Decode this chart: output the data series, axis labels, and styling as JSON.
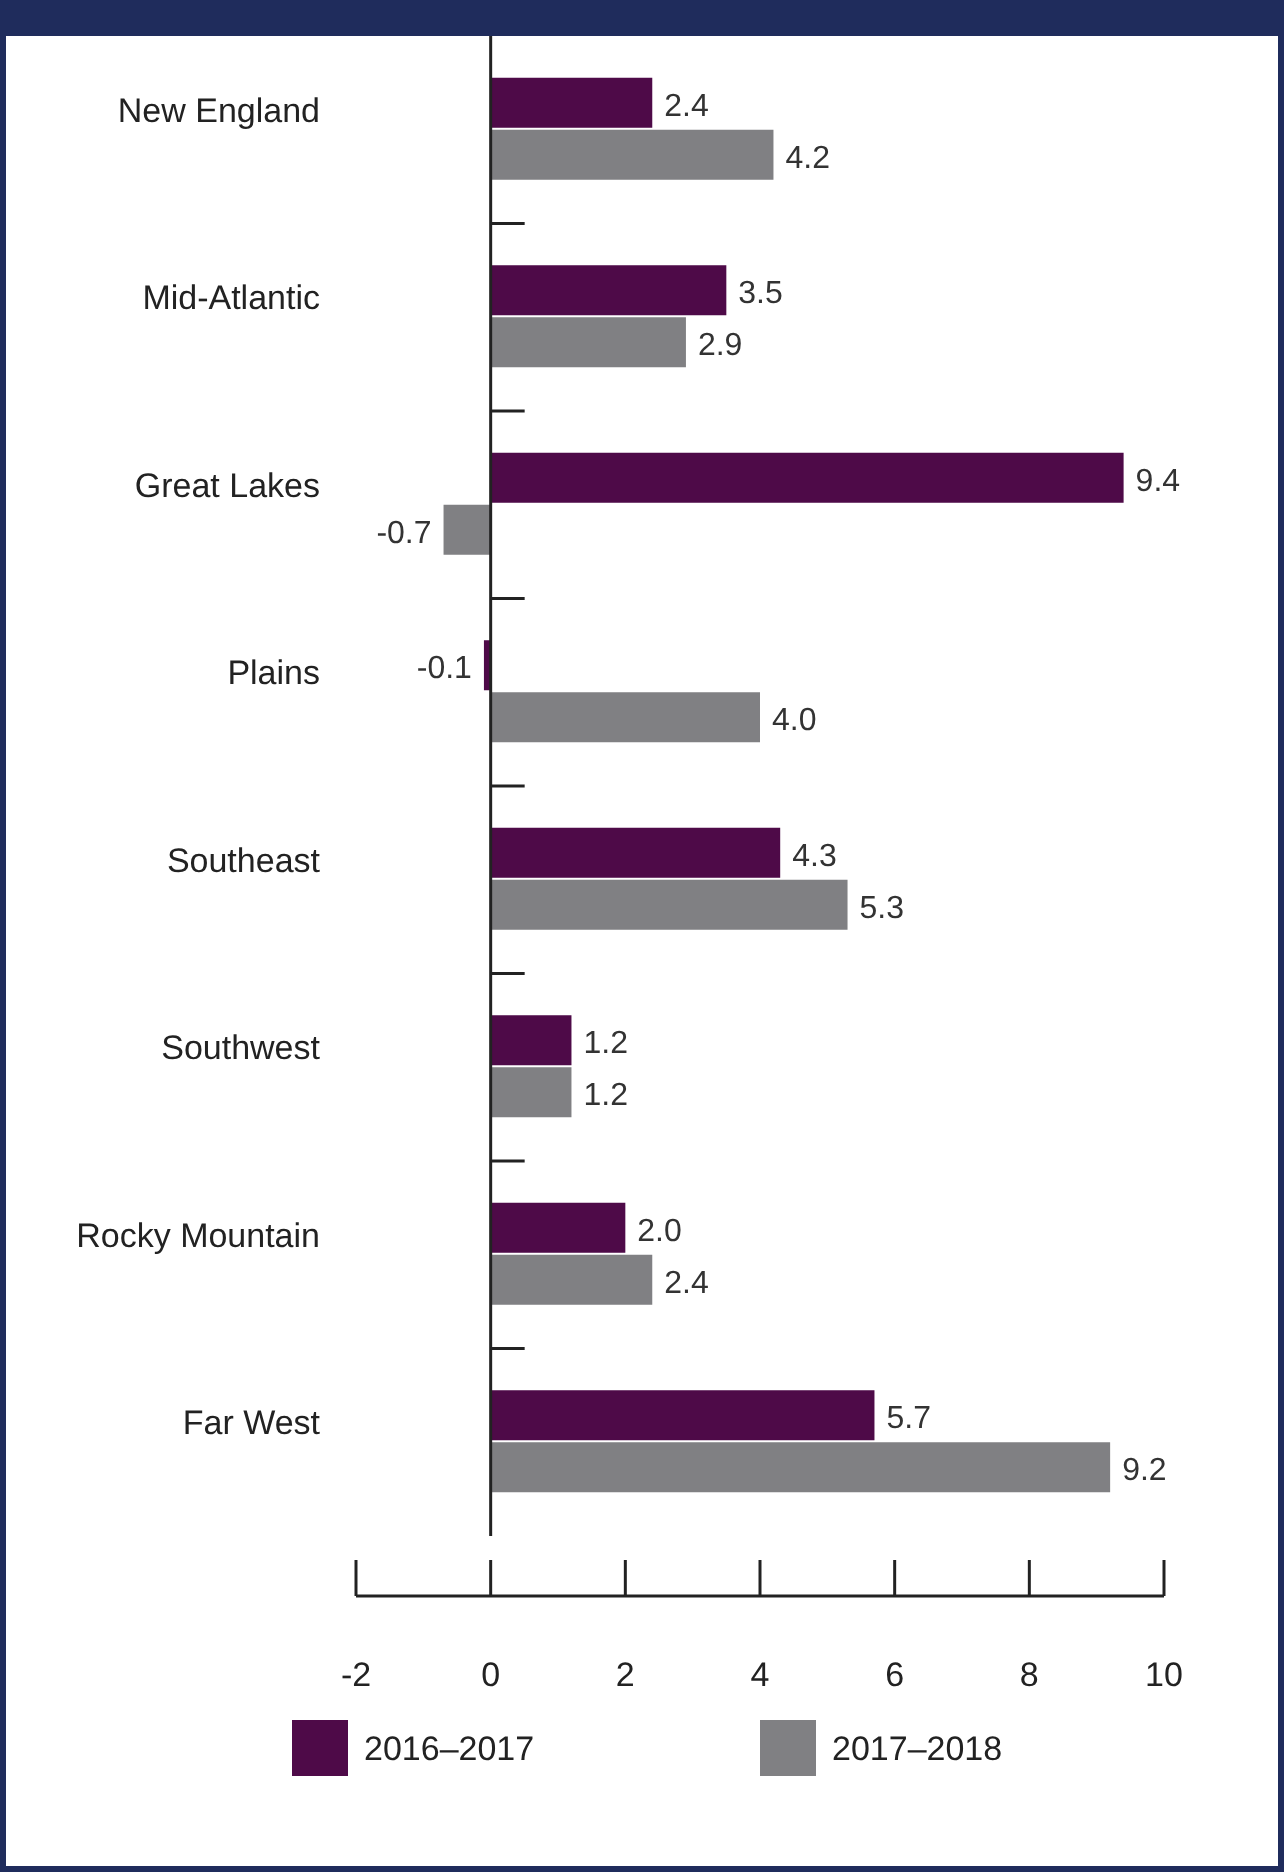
{
  "chart_data": {
    "type": "bar",
    "orientation": "horizontal",
    "categories": [
      "New England",
      "Mid-Atlantic",
      "Great Lakes",
      "Plains",
      "Southeast",
      "Southwest",
      "Rocky Mountain",
      "Far West"
    ],
    "series": [
      {
        "name": "2016–2017",
        "color": "#4e0a48",
        "values": [
          2.4,
          3.5,
          9.4,
          -0.1,
          4.3,
          1.2,
          2.0,
          5.7
        ],
        "value_labels": [
          "2.4",
          "3.5",
          "9.4",
          "-0.1",
          "4.3",
          "1.2",
          "2.0",
          "5.7"
        ]
      },
      {
        "name": "2017–2018",
        "color": "#808083",
        "values": [
          4.2,
          2.9,
          -0.7,
          4.0,
          5.3,
          1.2,
          2.4,
          9.2
        ],
        "value_labels": [
          "4.2",
          "2.9",
          "-0.7",
          "4.0",
          "5.3",
          "1.2",
          "2.4",
          "9.2"
        ]
      }
    ],
    "xlim": [
      -2,
      10
    ],
    "xticks": [
      -2,
      0,
      2,
      4,
      6,
      8,
      10
    ],
    "legend": "bottom"
  }
}
